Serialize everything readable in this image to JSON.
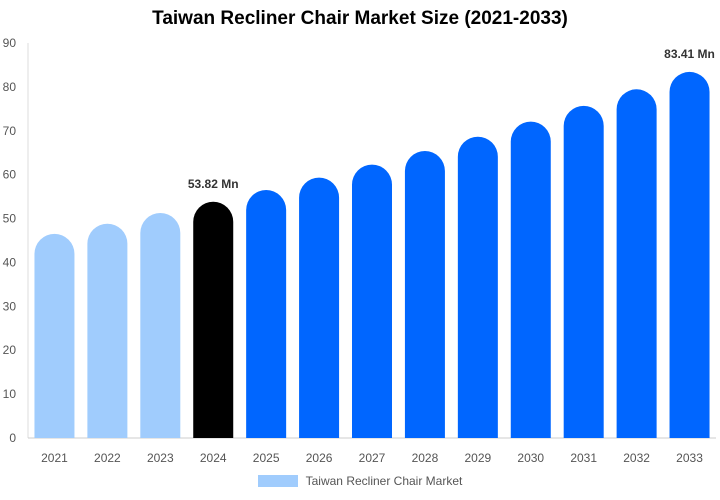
{
  "chart_data": {
    "type": "bar",
    "title": "Taiwan Recliner Chair Market Size (2021-2033)",
    "categories": [
      "2021",
      "2022",
      "2023",
      "2024",
      "2025",
      "2026",
      "2027",
      "2028",
      "2029",
      "2030",
      "2031",
      "2032",
      "2033"
    ],
    "series": [
      {
        "name": "Taiwan Recliner Chair Market",
        "values": [
          46.51,
          48.83,
          51.26,
          53.82,
          56.5,
          59.32,
          62.28,
          65.39,
          68.65,
          72.08,
          75.67,
          79.45,
          83.41
        ]
      }
    ],
    "data_labels": {
      "2024": "53.82 Mn",
      "2033": "83.41 Mn"
    },
    "ylim": [
      0,
      90
    ],
    "yticks": [
      0,
      10,
      20,
      30,
      40,
      50,
      60,
      70,
      80,
      90
    ],
    "xlabel": "",
    "ylabel": "",
    "grid": false,
    "legend_position": "bottom",
    "colors": {
      "historical": "#a0ccfd",
      "base_year": "#000000",
      "forecast": "#0066ff"
    }
  }
}
